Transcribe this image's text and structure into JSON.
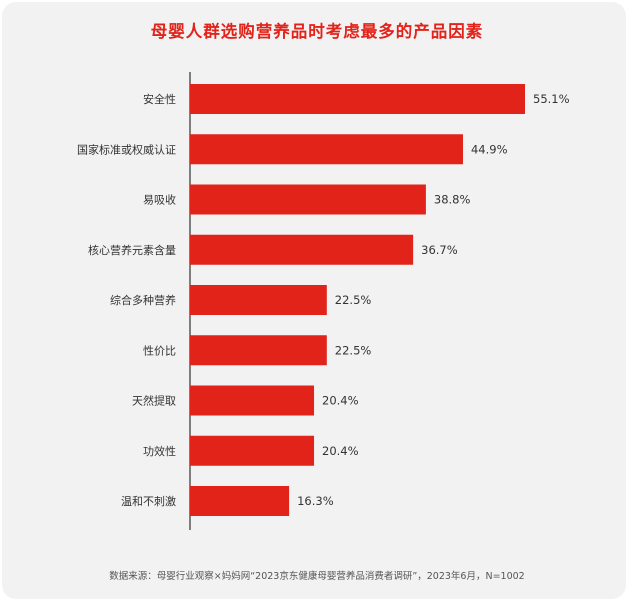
{
  "chart_data": {
    "type": "bar",
    "orientation": "horizontal",
    "title": "母婴人群选购营养品时考虑最多的产品因素",
    "categories": [
      "安全性",
      "国家标准或权威认证",
      "易吸收",
      "核心营养元素含量",
      "综合多种营养",
      "性价比",
      "天然提取",
      "功效性",
      "温和不刺激"
    ],
    "values": [
      55.1,
      44.9,
      38.8,
      36.7,
      22.5,
      22.5,
      20.4,
      20.4,
      16.3
    ],
    "value_labels": [
      "55.1%",
      "44.9%",
      "38.8%",
      "36.7%",
      "22.5%",
      "22.5%",
      "20.4%",
      "20.4%",
      "16.3%"
    ],
    "unit": "%",
    "xlim": [
      0,
      60
    ],
    "grid": false,
    "legend": "none",
    "bar_color": "#e2231a",
    "source": "数据来源：母婴行业观察×妈妈网“2023京东健康母婴营养品消费者调研”，2023年6月，N=1002"
  }
}
